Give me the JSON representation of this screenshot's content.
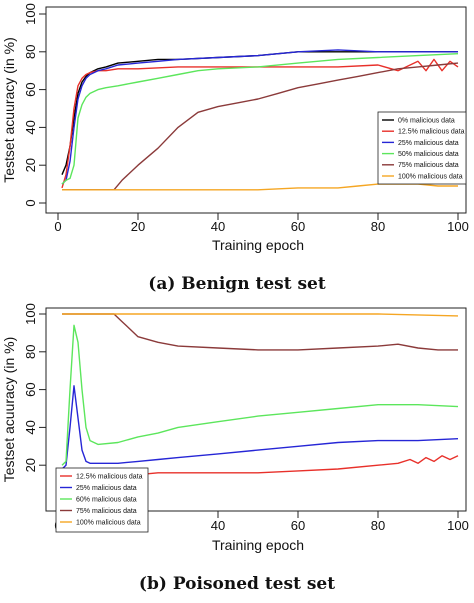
{
  "figures": [
    {
      "caption": "(a) Benign test set",
      "xlabel": "Training epoch",
      "ylabel": "Testset acuuracy (in %)",
      "legend_position": "right"
    },
    {
      "caption": "(b) Poisoned test set",
      "xlabel": "Training epoch",
      "ylabel": "Testset acuuracy (in %)",
      "legend_position": "bottom-left"
    }
  ],
  "chart_data": [
    {
      "type": "line",
      "title": "",
      "xlabel": "Training epoch",
      "ylabel": "Testset acuuracy (in %)",
      "xlim": [
        0,
        100
      ],
      "ylim": [
        0,
        100
      ],
      "xticks": [
        0,
        20,
        40,
        60,
        80,
        100
      ],
      "yticks": [
        0,
        20,
        40,
        60,
        80,
        100
      ],
      "grid": false,
      "legend_position": "right",
      "series": [
        {
          "name": "0% malicious data",
          "color": "#000000",
          "x": [
            1,
            2,
            3,
            4,
            5,
            6,
            7,
            8,
            10,
            12,
            15,
            20,
            25,
            30,
            40,
            50,
            60,
            70,
            80,
            90,
            100
          ],
          "y": [
            15,
            20,
            30,
            45,
            58,
            64,
            67,
            69,
            71,
            72,
            74,
            75,
            76,
            76,
            77,
            78,
            80,
            80,
            80,
            80,
            80
          ]
        },
        {
          "name": "12.5% malicious data",
          "color": "#e8302a",
          "x": [
            1,
            2,
            3,
            4,
            5,
            6,
            7,
            8,
            10,
            12,
            15,
            20,
            30,
            40,
            50,
            60,
            70,
            80,
            85,
            90,
            92,
            94,
            96,
            98,
            100
          ],
          "y": [
            8,
            15,
            30,
            50,
            62,
            66,
            68,
            69,
            70,
            70,
            71,
            71,
            72,
            72,
            72,
            72,
            72,
            73,
            70,
            75,
            70,
            76,
            70,
            75,
            72
          ]
        },
        {
          "name": "25% malicious data",
          "color": "#2626d6",
          "x": [
            1,
            2,
            3,
            4,
            5,
            6,
            7,
            8,
            10,
            12,
            15,
            20,
            25,
            30,
            40,
            50,
            60,
            70,
            80,
            90,
            100
          ],
          "y": [
            10,
            12,
            22,
            40,
            55,
            62,
            66,
            68,
            70,
            71,
            73,
            74,
            75,
            76,
            77,
            78,
            80,
            81,
            80,
            80,
            80
          ]
        },
        {
          "name": "50% malicious data",
          "color": "#5ce65c",
          "x": [
            1,
            2,
            3,
            4,
            5,
            6,
            7,
            8,
            10,
            12,
            15,
            20,
            25,
            30,
            35,
            40,
            50,
            60,
            70,
            80,
            90,
            100
          ],
          "y": [
            10,
            12,
            13,
            20,
            45,
            52,
            56,
            58,
            60,
            61,
            62,
            64,
            66,
            68,
            70,
            71,
            72,
            74,
            76,
            77,
            78,
            79
          ]
        },
        {
          "name": "75% malicious data",
          "color": "#8b3a3a",
          "x": [
            1,
            2,
            5,
            10,
            14,
            16,
            20,
            25,
            30,
            35,
            40,
            45,
            50,
            55,
            60,
            65,
            70,
            75,
            80,
            85,
            90,
            95,
            100
          ],
          "y": [
            7,
            7,
            7,
            7,
            7,
            12,
            20,
            29,
            40,
            48,
            51,
            53,
            55,
            58,
            61,
            63,
            65,
            67,
            69,
            71,
            72,
            73,
            74
          ]
        },
        {
          "name": "100% malicious data",
          "color": "#f5a623",
          "x": [
            1,
            10,
            20,
            30,
            40,
            50,
            60,
            70,
            75,
            80,
            85,
            90,
            95,
            100
          ],
          "y": [
            7,
            7,
            7,
            7,
            7,
            7,
            8,
            8,
            9,
            10,
            10,
            10,
            9,
            9
          ]
        }
      ]
    },
    {
      "type": "line",
      "title": "",
      "xlabel": "Training epoch",
      "ylabel": "Testset acuuracy (in %)",
      "xlim": [
        0,
        100
      ],
      "ylim": [
        0,
        100
      ],
      "xticks": [
        0,
        20,
        40,
        60,
        80,
        100
      ],
      "yticks": [
        20,
        40,
        60,
        80,
        100
      ],
      "grid": false,
      "legend_position": "bottom-left",
      "series": [
        {
          "name": "12.5% malicious data",
          "color": "#e8302a",
          "x": [
            1,
            5,
            10,
            15,
            20,
            25,
            30,
            40,
            50,
            60,
            70,
            80,
            85,
            88,
            90,
            92,
            94,
            96,
            98,
            100
          ],
          "y": [
            14,
            14,
            14,
            15,
            15,
            16,
            16,
            16,
            16,
            17,
            18,
            20,
            21,
            23,
            21,
            24,
            22,
            25,
            23,
            25
          ]
        },
        {
          "name": "25% malicious data",
          "color": "#2626d6",
          "x": [
            1,
            2,
            3,
            4,
            5,
            6,
            7,
            8,
            10,
            15,
            20,
            25,
            30,
            40,
            50,
            60,
            70,
            80,
            90,
            100
          ],
          "y": [
            18,
            20,
            40,
            62,
            45,
            28,
            22,
            21,
            21,
            21,
            22,
            23,
            24,
            26,
            28,
            30,
            32,
            33,
            33,
            34
          ]
        },
        {
          "name": "60% malicious data",
          "color": "#5ce65c",
          "x": [
            1,
            2,
            3,
            4,
            5,
            6,
            7,
            8,
            10,
            15,
            20,
            25,
            30,
            40,
            50,
            60,
            70,
            80,
            90,
            100
          ],
          "y": [
            20,
            22,
            60,
            94,
            85,
            60,
            40,
            33,
            31,
            32,
            35,
            37,
            40,
            43,
            46,
            48,
            50,
            52,
            52,
            51
          ]
        },
        {
          "name": "75% malicious data",
          "color": "#8b3a3a",
          "x": [
            1,
            5,
            10,
            14,
            16,
            18,
            20,
            25,
            30,
            40,
            50,
            60,
            70,
            80,
            85,
            90,
            95,
            100
          ],
          "y": [
            100,
            100,
            100,
            100,
            96,
            92,
            88,
            85,
            83,
            82,
            81,
            81,
            82,
            83,
            84,
            82,
            81,
            81
          ]
        },
        {
          "name": "100% malicious data",
          "color": "#f5a623",
          "x": [
            1,
            20,
            40,
            60,
            80,
            100
          ],
          "y": [
            100,
            100,
            100,
            100,
            100,
            99
          ]
        }
      ]
    }
  ]
}
